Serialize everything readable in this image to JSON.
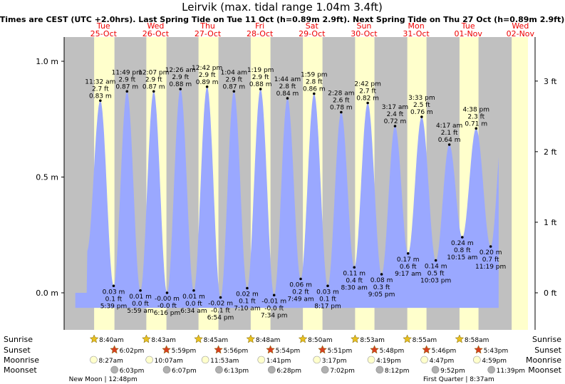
{
  "title": "Leirvik (max. tidal range 1.04m 3.4ft)",
  "subtitle": "Times are CEST (UTC +2.0hrs). Last Spring Tide on Tue 11 Oct (h=0.89m 2.9ft). Next Spring Tide on Thu 27 Oct (h=0.89m 2.9ft)",
  "colors": {
    "background": "#c0c0c0",
    "daylight": "#ffffcc",
    "tide_fill": "#9aa8ff",
    "day_label": "#ee0000",
    "sun_star": "#e8c020",
    "sunset_star": "#d84020",
    "moonrise": "#ffffcc",
    "moonset": "#b0b0b0"
  },
  "days": [
    {
      "dow": "Tue",
      "date": "25-Oct"
    },
    {
      "dow": "Wed",
      "date": "26-Oct"
    },
    {
      "dow": "Thu",
      "date": "27-Oct"
    },
    {
      "dow": "Fri",
      "date": "28-Oct"
    },
    {
      "dow": "Sat",
      "date": "29-Oct"
    },
    {
      "dow": "Sun",
      "date": "30-Oct"
    },
    {
      "dow": "Mon",
      "date": "31-Oct"
    },
    {
      "dow": "Tue",
      "date": "01-Nov"
    },
    {
      "dow": "Wed",
      "date": "02-Nov"
    }
  ],
  "chart_data": {
    "type": "area",
    "y_unit_left": "m",
    "y_unit_right": "ft",
    "ylim": [
      -0.08,
      1.07
    ],
    "y_ticks_m": [
      {
        "v": 0.0,
        "label": "0.0 m"
      },
      {
        "v": 0.5,
        "label": "0.5 m"
      },
      {
        "v": 1.0,
        "label": "1.0 m"
      }
    ],
    "y_ticks_ft": [
      {
        "v": 0,
        "label": "0 ft"
      },
      {
        "v": 1,
        "label": "1 ft"
      },
      {
        "v": 2,
        "label": "2 ft"
      },
      {
        "v": 3,
        "label": "3 ft"
      }
    ],
    "tides": [
      {
        "type": "high",
        "day": 0,
        "time": "11:32 am",
        "ft": "2.7 ft",
        "m": "0.83 m",
        "h": 0.83,
        "t": 11.53
      },
      {
        "type": "low",
        "day": 0,
        "time": "5:39 pm",
        "ft": "0.1 ft",
        "m": "0.03 m",
        "h": 0.03,
        "t": 17.65
      },
      {
        "type": "high",
        "day": 0,
        "time": "11:49 pm",
        "ft": "2.9 ft",
        "m": "0.87 m",
        "h": 0.87,
        "t": 23.82
      },
      {
        "type": "low",
        "day": 1,
        "time": "5:59 am",
        "ft": "0.0 ft",
        "m": "0.01 m",
        "h": 0.01,
        "t": 29.98
      },
      {
        "type": "high",
        "day": 1,
        "time": "12:07 pm",
        "ft": "2.9 ft",
        "m": "0.87 m",
        "h": 0.87,
        "t": 36.12
      },
      {
        "type": "low",
        "day": 1,
        "time": "6:16 pm",
        "ft": "-0.0 ft",
        "m": "-0.00 m",
        "h": 0.0,
        "t": 42.27
      },
      {
        "type": "high",
        "day": 2,
        "time": "12:26 am",
        "ft": "2.9 ft",
        "m": "0.88 m",
        "h": 0.88,
        "t": 48.43
      },
      {
        "type": "low",
        "day": 2,
        "time": "6:34 am",
        "ft": "0.0 ft",
        "m": "0.01 m",
        "h": 0.01,
        "t": 54.57
      },
      {
        "type": "high",
        "day": 2,
        "time": "12:42 pm",
        "ft": "2.9 ft",
        "m": "0.89 m",
        "h": 0.89,
        "t": 60.7
      },
      {
        "type": "low",
        "day": 2,
        "time": "6:54 pm",
        "ft": "-0.1 ft",
        "m": "-0.02 m",
        "h": -0.02,
        "t": 66.9
      },
      {
        "type": "high",
        "day": 3,
        "time": "1:04 am",
        "ft": "2.9 ft",
        "m": "0.87 m",
        "h": 0.87,
        "t": 73.07
      },
      {
        "type": "low",
        "day": 3,
        "time": "7:10 am",
        "ft": "0.1 ft",
        "m": "0.02 m",
        "h": 0.02,
        "t": 79.17
      },
      {
        "type": "high",
        "day": 3,
        "time": "1:19 pm",
        "ft": "2.9 ft",
        "m": "0.88 m",
        "h": 0.88,
        "t": 85.32
      },
      {
        "type": "low",
        "day": 3,
        "time": "7:34 pm",
        "ft": "-0.0 ft",
        "m": "-0.01 m",
        "h": -0.01,
        "t": 91.57
      },
      {
        "type": "high",
        "day": 4,
        "time": "1:44 am",
        "ft": "2.8 ft",
        "m": "0.84 m",
        "h": 0.84,
        "t": 97.73
      },
      {
        "type": "low",
        "day": 4,
        "time": "7:49 am",
        "ft": "0.2 ft",
        "m": "0.06 m",
        "h": 0.06,
        "t": 103.82
      },
      {
        "type": "high",
        "day": 4,
        "time": "1:59 pm",
        "ft": "2.8 ft",
        "m": "0.86 m",
        "h": 0.86,
        "t": 109.98
      },
      {
        "type": "low",
        "day": 4,
        "time": "8:17 pm",
        "ft": "0.1 ft",
        "m": "0.03 m",
        "h": 0.03,
        "t": 116.28
      },
      {
        "type": "high",
        "day": 5,
        "time": "2:28 am",
        "ft": "2.6 ft",
        "m": "0.78 m",
        "h": 0.78,
        "t": 122.47
      },
      {
        "type": "low",
        "day": 5,
        "time": "8:30 am",
        "ft": "0.4 ft",
        "m": "0.11 m",
        "h": 0.11,
        "t": 128.5
      },
      {
        "type": "high",
        "day": 5,
        "time": "2:42 pm",
        "ft": "2.7 ft",
        "m": "0.82 m",
        "h": 0.82,
        "t": 134.7
      },
      {
        "type": "low",
        "day": 5,
        "time": "9:05 pm",
        "ft": "0.3 ft",
        "m": "0.08 m",
        "h": 0.08,
        "t": 141.08
      },
      {
        "type": "high",
        "day": 6,
        "time": "3:17 am",
        "ft": "2.4 ft",
        "m": "0.72 m",
        "h": 0.72,
        "t": 147.28
      },
      {
        "type": "low",
        "day": 6,
        "time": "9:17 am",
        "ft": "0.6 ft",
        "m": "0.17 m",
        "h": 0.17,
        "t": 153.28
      },
      {
        "type": "high",
        "day": 6,
        "time": "3:33 pm",
        "ft": "2.5 ft",
        "m": "0.76 m",
        "h": 0.76,
        "t": 159.55
      },
      {
        "type": "low",
        "day": 6,
        "time": "10:03 pm",
        "ft": "0.5 ft",
        "m": "0.14 m",
        "h": 0.14,
        "t": 166.05
      },
      {
        "type": "high",
        "day": 7,
        "time": "4:17 am",
        "ft": "2.1 ft",
        "m": "0.64 m",
        "h": 0.64,
        "t": 172.28
      },
      {
        "type": "low",
        "day": 7,
        "time": "10:15 am",
        "ft": "0.8 ft",
        "m": "0.24 m",
        "h": 0.24,
        "t": 178.25
      },
      {
        "type": "high",
        "day": 7,
        "time": "4:38 pm",
        "ft": "2.3 ft",
        "m": "0.71 m",
        "h": 0.71,
        "t": 184.63
      },
      {
        "type": "low",
        "day": 7,
        "time": "11:19 pm",
        "ft": "0.7 ft",
        "m": "0.20 m",
        "h": 0.2,
        "t": 191.32
      }
    ]
  },
  "astro_labels": {
    "sunrise": "Sunrise",
    "sunset": "Sunset",
    "moonrise": "Moonrise",
    "moonset": "Moonset"
  },
  "astro": [
    {
      "sunrise": "8:40am",
      "sunset": "6:02pm",
      "moonrise": "8:27am",
      "moonset": "6:03pm",
      "sr": 8.67,
      "ss": 18.03,
      "mr": 8.45,
      "ms": 18.05
    },
    {
      "sunrise": "8:43am",
      "sunset": "5:59pm",
      "moonrise": "10:07am",
      "moonset": "6:07pm",
      "sr": 8.72,
      "ss": 17.98,
      "mr": 10.12,
      "ms": 18.12
    },
    {
      "sunrise": "8:45am",
      "sunset": "5:56pm",
      "moonrise": "11:53am",
      "moonset": "6:13pm",
      "sr": 8.75,
      "ss": 17.93,
      "mr": 11.88,
      "ms": 18.22
    },
    {
      "sunrise": "8:48am",
      "sunset": "5:54pm",
      "moonrise": "1:41pm",
      "moonset": "6:28pm",
      "sr": 8.8,
      "ss": 17.9,
      "mr": 13.68,
      "ms": 18.47
    },
    {
      "sunrise": "8:50am",
      "sunset": "5:51pm",
      "moonrise": "3:17pm",
      "moonset": "7:02pm",
      "sr": 8.83,
      "ss": 17.85,
      "mr": 15.28,
      "ms": 19.03
    },
    {
      "sunrise": "8:53am",
      "sunset": "5:48pm",
      "moonrise": "4:19pm",
      "moonset": "8:12pm",
      "sr": 8.88,
      "ss": 17.8,
      "mr": 16.32,
      "ms": 20.2
    },
    {
      "sunrise": "8:55am",
      "sunset": "5:46pm",
      "moonrise": "4:47pm",
      "moonset": "9:52pm",
      "sr": 8.92,
      "ss": 17.77,
      "mr": 16.78,
      "ms": 21.87
    },
    {
      "sunrise": "8:58am",
      "sunset": "5:43pm",
      "moonrise": "4:59pm",
      "moonset": "11:39pm",
      "sr": 8.97,
      "ss": 17.72,
      "mr": 16.98,
      "ms": 23.65
    }
  ],
  "moon_phases": [
    {
      "text": "New Moon | 12:48pm",
      "t": 12.8
    },
    {
      "text": "First Quarter | 8:37am",
      "t": 176.62
    }
  ]
}
